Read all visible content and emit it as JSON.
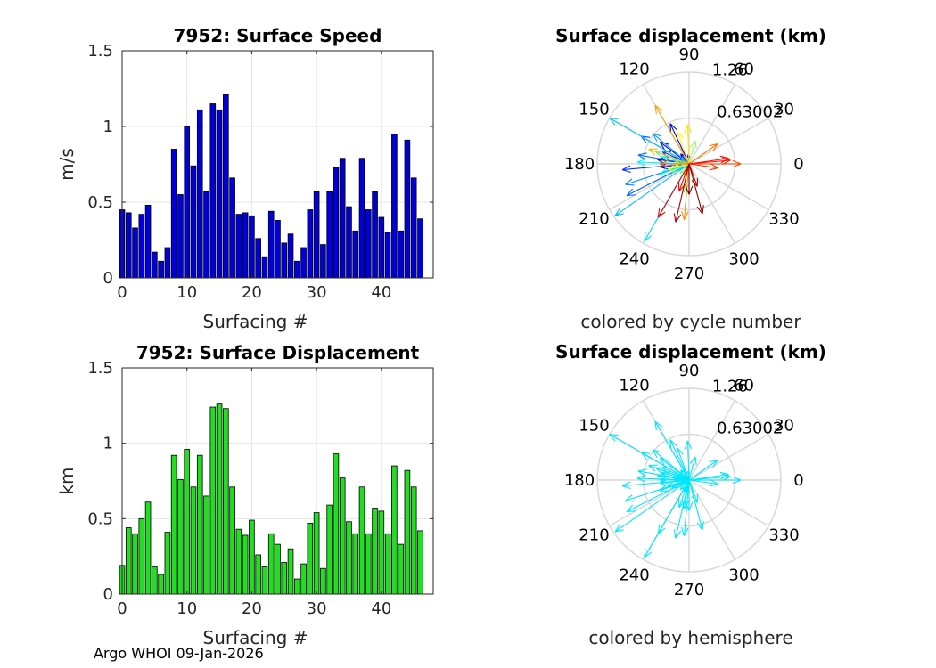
{
  "footer": "Argo WHOI 09-Jan-2026",
  "chart_data": [
    {
      "type": "bar",
      "id": "speed",
      "title": "7952: Surface Speed",
      "xlabel": "Surfacing #",
      "ylabel": "m/s",
      "xlim": [
        0,
        48
      ],
      "ylim": [
        0,
        1.5
      ],
      "xticks": [
        "0",
        "10",
        "20",
        "30",
        "40"
      ],
      "yticks": [
        "0",
        "0.5",
        "1",
        "1.5"
      ],
      "bar_color": "#0000dd",
      "x": [
        0,
        1,
        2,
        3,
        4,
        5,
        6,
        7,
        8,
        9,
        10,
        11,
        12,
        13,
        14,
        15,
        16,
        17,
        18,
        19,
        20,
        21,
        22,
        23,
        24,
        25,
        26,
        27,
        28,
        29,
        30,
        31,
        32,
        33,
        34,
        35,
        36,
        37,
        38,
        39,
        40,
        41,
        42,
        43,
        44,
        45,
        46
      ],
      "values": [
        0.45,
        0.43,
        0.33,
        0.42,
        0.48,
        0.17,
        0.11,
        0.2,
        0.85,
        0.55,
        1.0,
        0.74,
        1.11,
        0.57,
        1.15,
        1.11,
        1.21,
        0.66,
        0.42,
        0.43,
        0.41,
        0.26,
        0.14,
        0.44,
        0.38,
        0.23,
        0.29,
        0.11,
        0.2,
        0.45,
        0.57,
        0.22,
        0.57,
        0.73,
        0.79,
        0.47,
        0.31,
        0.79,
        0.45,
        0.57,
        0.4,
        0.3,
        0.95,
        0.31,
        0.91,
        0.66,
        0.39
      ]
    },
    {
      "type": "bar",
      "id": "displacement",
      "title": "7952: Surface Displacement",
      "xlabel": "Surfacing #",
      "ylabel": "km",
      "xlim": [
        0,
        48
      ],
      "ylim": [
        0,
        1.5
      ],
      "xticks": [
        "0",
        "10",
        "20",
        "30",
        "40"
      ],
      "yticks": [
        "0",
        "0.5",
        "1",
        "1.5"
      ],
      "bar_color": "#22dd22",
      "x": [
        0,
        1,
        2,
        3,
        4,
        5,
        6,
        7,
        8,
        9,
        10,
        11,
        12,
        13,
        14,
        15,
        16,
        17,
        18,
        19,
        20,
        21,
        22,
        23,
        24,
        25,
        26,
        27,
        28,
        29,
        30,
        31,
        32,
        33,
        34,
        35,
        36,
        37,
        38,
        39,
        40,
        41,
        42,
        43,
        44,
        45,
        46
      ],
      "values": [
        0.19,
        0.44,
        0.4,
        0.5,
        0.61,
        0.18,
        0.13,
        0.41,
        0.92,
        0.76,
        0.96,
        0.71,
        0.92,
        0.65,
        1.24,
        1.26,
        1.23,
        0.71,
        0.43,
        0.39,
        0.49,
        0.26,
        0.18,
        0.4,
        0.33,
        0.21,
        0.3,
        0.1,
        0.2,
        0.47,
        0.54,
        0.17,
        0.59,
        0.93,
        0.77,
        0.48,
        0.4,
        0.71,
        0.4,
        0.57,
        0.55,
        0.4,
        0.85,
        0.33,
        0.82,
        0.71,
        0.42
      ]
    },
    {
      "type": "polar-compass",
      "id": "polar-cycle",
      "title": "Surface displacement (km)",
      "caption": "colored by cycle number",
      "rmax": 1.26,
      "ring_label": "0.63002",
      "rmax_label": "1.26",
      "angle_labels": [
        "0",
        "30",
        "60",
        "90",
        "120",
        "150",
        "180",
        "210",
        "240",
        "270",
        "300",
        "330"
      ],
      "color_mode": "cycle",
      "colormap": [
        "#00008f",
        "#0000ff",
        "#0080ff",
        "#00ffff",
        "#80ff80",
        "#ffff00",
        "#ff8000",
        "#ff0000",
        "#800000"
      ],
      "vectors_deg": [
        176,
        172,
        186,
        143,
        115,
        130,
        95,
        155,
        185,
        150,
        207,
        170,
        198,
        140,
        215,
        150,
        240,
        178,
        200,
        165,
        160,
        205,
        228,
        260,
        75,
        175,
        195,
        188,
        182,
        110,
        92,
        245,
        160,
        120,
        265,
        35,
        180,
        0,
        352,
        5,
        8,
        250,
        240,
        290,
        257,
        285,
        270
      ],
      "vectors_km": [
        0.19,
        0.44,
        0.4,
        0.5,
        0.61,
        0.18,
        0.13,
        0.41,
        0.92,
        0.76,
        0.96,
        0.71,
        0.92,
        0.65,
        1.24,
        1.26,
        1.23,
        0.71,
        0.43,
        0.39,
        0.49,
        0.26,
        0.18,
        0.4,
        0.33,
        0.21,
        0.3,
        0.1,
        0.2,
        0.47,
        0.54,
        0.17,
        0.59,
        0.93,
        0.77,
        0.48,
        0.4,
        0.71,
        0.4,
        0.57,
        0.55,
        0.4,
        0.85,
        0.33,
        0.82,
        0.71,
        0.42
      ]
    },
    {
      "type": "polar-compass",
      "id": "polar-hemisphere",
      "title": "Surface displacement (km)",
      "caption": "colored by hemisphere",
      "rmax": 1.26,
      "ring_label": "0.63002",
      "rmax_label": "1.26",
      "angle_labels": [
        "0",
        "30",
        "60",
        "90",
        "120",
        "150",
        "180",
        "210",
        "240",
        "270",
        "300",
        "330"
      ],
      "color_mode": "single",
      "vector_color": "#00e6ff",
      "vectors_deg": [
        176,
        172,
        186,
        143,
        115,
        130,
        95,
        155,
        185,
        150,
        207,
        170,
        198,
        140,
        215,
        150,
        240,
        178,
        200,
        165,
        160,
        205,
        228,
        260,
        75,
        175,
        195,
        188,
        182,
        110,
        92,
        245,
        160,
        120,
        265,
        35,
        180,
        0,
        352,
        5,
        8,
        250,
        240,
        290,
        257,
        285,
        270
      ],
      "vectors_km": [
        0.19,
        0.44,
        0.4,
        0.5,
        0.61,
        0.18,
        0.13,
        0.41,
        0.92,
        0.76,
        0.96,
        0.71,
        0.92,
        0.65,
        1.24,
        1.26,
        1.23,
        0.71,
        0.43,
        0.39,
        0.49,
        0.26,
        0.18,
        0.4,
        0.33,
        0.21,
        0.3,
        0.1,
        0.2,
        0.47,
        0.54,
        0.17,
        0.59,
        0.93,
        0.77,
        0.48,
        0.4,
        0.71,
        0.4,
        0.57,
        0.55,
        0.4,
        0.85,
        0.33,
        0.82,
        0.71,
        0.42
      ]
    }
  ]
}
